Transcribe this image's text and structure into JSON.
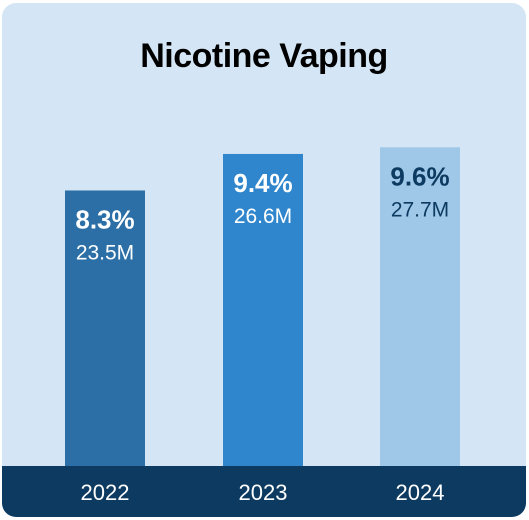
{
  "chart_data": {
    "type": "bar",
    "title": "Nicotine Vaping",
    "categories": [
      "2022",
      "2023",
      "2024"
    ],
    "values": [
      8.3,
      9.4,
      9.6
    ],
    "value_labels": [
      "8.3%",
      "9.4%",
      "9.6%"
    ],
    "count_labels": [
      "23.5M",
      "26.6M",
      "27.7M"
    ],
    "counts_millions": [
      23.5,
      26.6,
      27.7
    ],
    "unit": "%",
    "colors": [
      "#2b6fa6",
      "#2f86cc",
      "#9fc8e8"
    ],
    "label_colors": [
      "#ffffff",
      "#ffffff",
      "#0d3a60"
    ],
    "background": "#d4e6f5",
    "axis_band_color": "#0d3a60",
    "ylim": [
      0,
      12.2
    ],
    "grid": false,
    "legend": "none"
  }
}
